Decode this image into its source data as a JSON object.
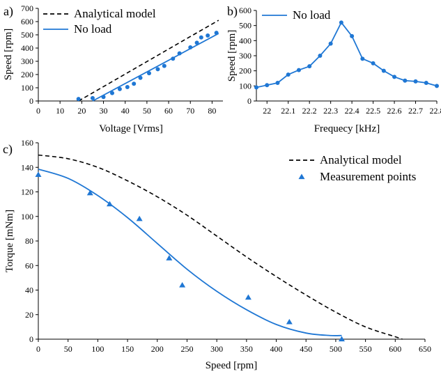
{
  "chart_data": [
    {
      "panel_label": "a)",
      "type": "line",
      "xlabel": "Voltage [Vrms]",
      "ylabel": "Speed [rpm]",
      "xlim": [
        0,
        85
      ],
      "ylim": [
        0,
        700
      ],
      "xticks": [
        0,
        10,
        20,
        30,
        40,
        50,
        60,
        70,
        80
      ],
      "yticks": [
        0,
        100,
        200,
        300,
        400,
        500,
        600,
        700
      ],
      "grid": false,
      "legend_position": "top-left",
      "series": [
        {
          "name": "Analytical model",
          "style": "dashed",
          "color": "#000000",
          "x": [
            18.5,
            83
          ],
          "y": [
            0,
            610
          ]
        },
        {
          "name": "No load",
          "style": "solid",
          "color": "#1f77d4",
          "x": [
            25,
            83
          ],
          "y": [
            0,
            510
          ]
        },
        {
          "name": "",
          "style": "markers",
          "color": "#1f77d4",
          "x": [
            18.5,
            25,
            30,
            34,
            37.5,
            41,
            44,
            47,
            51,
            55,
            58,
            62,
            65,
            70,
            73,
            75,
            78,
            82
          ],
          "y": [
            15,
            22,
            30,
            60,
            90,
            105,
            130,
            175,
            210,
            240,
            265,
            320,
            360,
            405,
            440,
            480,
            495,
            515
          ]
        }
      ]
    },
    {
      "panel_label": "b)",
      "type": "line",
      "xlabel": "Frequecy [kHz]",
      "ylabel": "Speed [rpm]",
      "xlim": [
        21.95,
        22.8
      ],
      "ylim": [
        0,
        600
      ],
      "xticks": [
        22,
        22.1,
        22.2,
        22.3,
        22.4,
        22.5,
        22.6,
        22.7,
        22.8
      ],
      "xtick_labels": [
        "22",
        "22.1",
        "22.2",
        "22.3",
        "22.4",
        "22.5",
        "22.6",
        "22.7",
        "22.8"
      ],
      "yticks": [
        0,
        100,
        200,
        300,
        400,
        500,
        600
      ],
      "grid": false,
      "legend_position": "top-left",
      "series": [
        {
          "name": "No load",
          "style": "line-markers",
          "color": "#1f77d4",
          "x": [
            21.95,
            22.0,
            22.05,
            22.1,
            22.15,
            22.2,
            22.25,
            22.3,
            22.35,
            22.4,
            22.45,
            22.5,
            22.55,
            22.6,
            22.65,
            22.7,
            22.75,
            22.8
          ],
          "y": [
            90,
            105,
            120,
            175,
            205,
            230,
            300,
            380,
            520,
            430,
            280,
            250,
            200,
            160,
            135,
            130,
            120,
            100
          ]
        }
      ]
    },
    {
      "panel_label": "c)",
      "type": "line",
      "xlabel": "Speed [rpm]",
      "ylabel": "Torque [mNm]",
      "xlim": [
        0,
        650
      ],
      "ylim": [
        0,
        160
      ],
      "xticks": [
        0,
        50,
        100,
        150,
        200,
        250,
        300,
        350,
        400,
        450,
        500,
        550,
        600,
        650
      ],
      "yticks": [
        0,
        20,
        40,
        60,
        80,
        100,
        120,
        140,
        160
      ],
      "grid": false,
      "legend_position": "top-right",
      "series": [
        {
          "name": "",
          "style": "solid",
          "color": "#1f77d4",
          "x": [
            0,
            50,
            100,
            150,
            200,
            250,
            300,
            350,
            400,
            450,
            490,
            510
          ],
          "y": [
            138.5,
            131,
            117,
            99,
            78,
            57,
            39,
            24,
            12,
            5,
            3,
            3
          ]
        },
        {
          "name": "Analytical model",
          "style": "dashed",
          "color": "#000000",
          "x": [
            0,
            50,
            100,
            150,
            200,
            250,
            300,
            350,
            400,
            450,
            500,
            550,
            600,
            612
          ],
          "y": [
            150,
            147,
            140,
            129,
            116,
            101,
            84,
            67,
            51,
            36,
            22,
            10,
            2,
            0
          ]
        },
        {
          "name": "Measurement points",
          "style": "triangle-markers",
          "color": "#1f77d4",
          "x": [
            0,
            87,
            120,
            170,
            220,
            242,
            353,
            422,
            510
          ],
          "y": [
            134,
            119,
            110,
            98,
            66,
            44,
            34,
            14,
            0
          ]
        }
      ]
    }
  ]
}
